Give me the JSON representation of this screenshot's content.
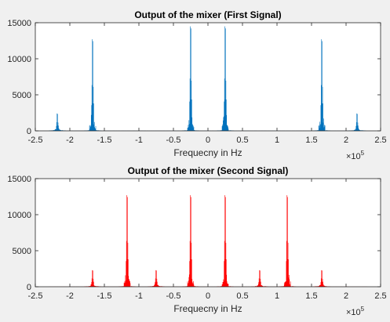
{
  "figure": {
    "background": "#f0f0f0"
  },
  "chart_data": [
    {
      "type": "line",
      "title": "Output of the mixer (First Signal)",
      "xlabel": "Frequecny in Hz",
      "ylabel": "",
      "xlim": [
        -250000,
        250000
      ],
      "ylim": [
        0,
        15000
      ],
      "x_ticks": [
        -250000,
        -200000,
        -150000,
        -100000,
        -50000,
        0,
        50000,
        100000,
        150000,
        200000,
        250000
      ],
      "x_tick_labels": [
        "-2.5",
        "-2",
        "-1.5",
        "-1",
        "-0.5",
        "0",
        "0.5",
        "1",
        "1.5",
        "2",
        "2.5"
      ],
      "y_ticks": [
        0,
        5000,
        10000,
        15000
      ],
      "y_tick_labels": [
        "0",
        "5000",
        "10000",
        "15000"
      ],
      "x_exponent": {
        "base": "×10",
        "power": "5"
      },
      "grid": false,
      "series": [
        {
          "color": "#0072bd",
          "clusters": [
            {
              "center": -218000,
              "peak": 2400
            },
            {
              "center": -167000,
              "peak": 12700
            },
            {
              "center": -25000,
              "peak": 14500
            },
            {
              "center": 25000,
              "peak": 14500
            },
            {
              "center": 165000,
              "peak": 12700
            },
            {
              "center": 216000,
              "peak": 2400
            }
          ]
        }
      ]
    },
    {
      "type": "line",
      "title": "Output of the mixer (Second Signal)",
      "xlabel": "Frequecny in Hz",
      "ylabel": "",
      "xlim": [
        -250000,
        250000
      ],
      "ylim": [
        0,
        15000
      ],
      "x_ticks": [
        -250000,
        -200000,
        -150000,
        -100000,
        -50000,
        0,
        50000,
        100000,
        150000,
        200000,
        250000
      ],
      "x_tick_labels": [
        "-2.5",
        "-2",
        "-1.5",
        "-1",
        "-0.5",
        "0",
        "0.5",
        "1",
        "1.5",
        "2",
        "2.5"
      ],
      "y_ticks": [
        0,
        5000,
        10000,
        15000
      ],
      "y_tick_labels": [
        "0",
        "5000",
        "10000",
        "15000"
      ],
      "x_exponent": {
        "base": "×10",
        "power": "5"
      },
      "grid": false,
      "series": [
        {
          "color": "#ff0000",
          "clusters": [
            {
              "center": -167000,
              "peak": 2300
            },
            {
              "center": -117000,
              "peak": 12700
            },
            {
              "center": -75000,
              "peak": 2300
            },
            {
              "center": -25000,
              "peak": 12700
            },
            {
              "center": 25000,
              "peak": 12700
            },
            {
              "center": 75000,
              "peak": 2300
            },
            {
              "center": 115000,
              "peak": 12700
            },
            {
              "center": 165000,
              "peak": 2300
            }
          ]
        }
      ]
    }
  ]
}
